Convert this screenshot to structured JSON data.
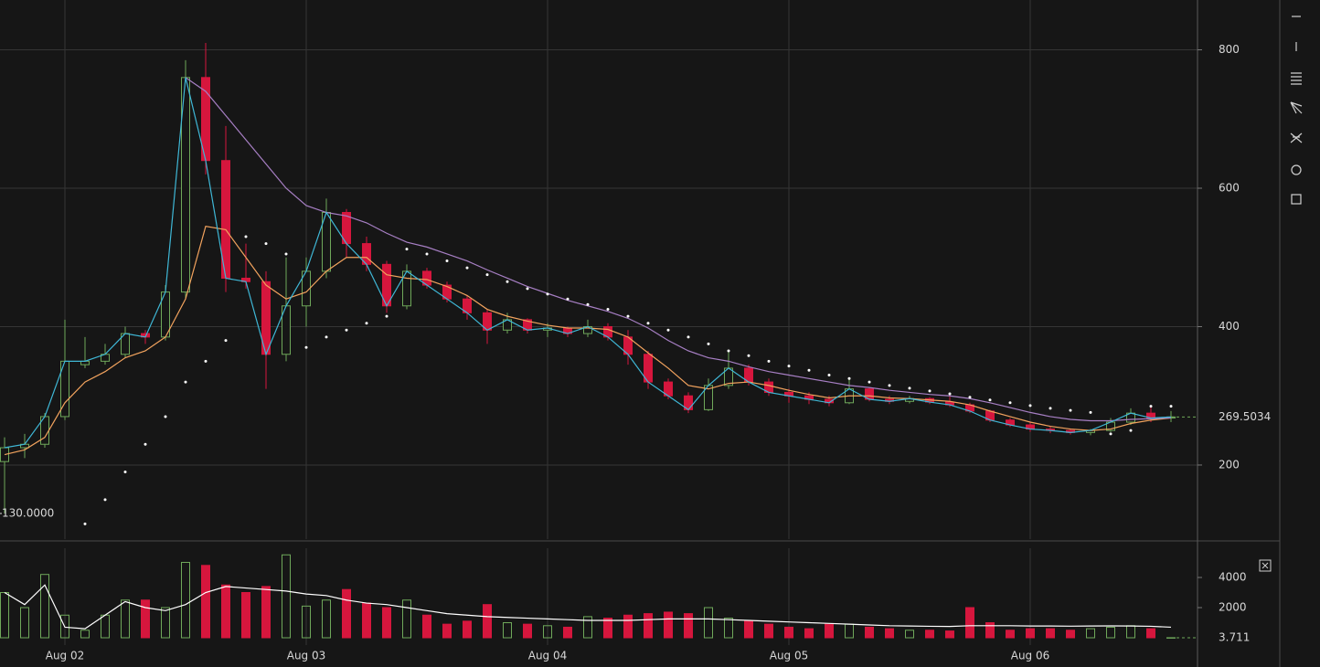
{
  "chart_data": {
    "type": "candlestick",
    "categories": [
      null,
      null,
      null,
      "Aug 02",
      null,
      null,
      null,
      null,
      null,
      null,
      null,
      null,
      null,
      null,
      null,
      "Aug 03",
      null,
      null,
      null,
      null,
      null,
      null,
      null,
      null,
      null,
      null,
      null,
      "Aug 04",
      null,
      null,
      null,
      null,
      null,
      null,
      null,
      null,
      null,
      null,
      null,
      "Aug 05",
      null,
      null,
      null,
      null,
      null,
      null,
      null,
      null,
      null,
      null,
      null,
      "Aug 06",
      null,
      null,
      null,
      null,
      null,
      null,
      null
    ],
    "open": [
      205,
      225,
      230,
      270,
      345,
      350,
      360,
      390,
      385,
      450,
      760,
      640,
      470,
      465,
      360,
      430,
      480,
      565,
      520,
      490,
      430,
      480,
      460,
      440,
      420,
      395,
      410,
      395,
      398,
      390,
      400,
      385,
      360,
      320,
      300,
      280,
      315,
      340,
      320,
      305,
      300,
      295,
      290,
      310,
      295,
      292,
      296,
      291,
      287,
      278,
      265,
      258,
      252,
      250,
      247,
      250,
      262,
      275,
      268
    ],
    "high": [
      240,
      245,
      275,
      410,
      385,
      375,
      400,
      395,
      460,
      785,
      810,
      690,
      520,
      480,
      500,
      500,
      585,
      570,
      530,
      495,
      490,
      485,
      465,
      445,
      425,
      420,
      412,
      405,
      400,
      410,
      405,
      395,
      365,
      325,
      305,
      325,
      365,
      345,
      325,
      310,
      305,
      300,
      325,
      312,
      300,
      300,
      298,
      300,
      290,
      280,
      268,
      262,
      256,
      253,
      252,
      268,
      282,
      285,
      278
    ],
    "low": [
      130,
      210,
      225,
      265,
      340,
      345,
      355,
      375,
      380,
      440,
      620,
      450,
      455,
      310,
      350,
      400,
      470,
      500,
      480,
      420,
      425,
      455,
      435,
      410,
      375,
      390,
      390,
      385,
      385,
      385,
      380,
      345,
      310,
      295,
      275,
      278,
      310,
      315,
      300,
      290,
      288,
      285,
      288,
      292,
      288,
      289,
      288,
      284,
      275,
      262,
      255,
      248,
      246,
      244,
      243,
      248,
      258,
      262,
      262
    ],
    "close": [
      225,
      230,
      270,
      350,
      350,
      360,
      390,
      385,
      450,
      760,
      640,
      470,
      465,
      360,
      430,
      480,
      565,
      520,
      490,
      430,
      480,
      460,
      440,
      420,
      395,
      410,
      395,
      398,
      390,
      400,
      385,
      360,
      320,
      300,
      280,
      315,
      340,
      320,
      305,
      300,
      295,
      290,
      310,
      295,
      292,
      296,
      291,
      287,
      278,
      265,
      258,
      252,
      250,
      247,
      250,
      262,
      275,
      268,
      269.5034
    ],
    "volume": [
      3000,
      2000,
      4200,
      1500,
      500,
      1500,
      2500,
      2500,
      2000,
      5000,
      4800,
      3500,
      3000,
      3400,
      5500,
      2100,
      2500,
      3200,
      2300,
      2000,
      2500,
      1500,
      900,
      1100,
      2200,
      1000,
      900,
      800,
      700,
      1400,
      1300,
      1500,
      1600,
      1700,
      1600,
      2000,
      1300,
      1100,
      900,
      700,
      600,
      900,
      900,
      700,
      600,
      500,
      500,
      450,
      2000,
      1000,
      500,
      600,
      600,
      500,
      600,
      700,
      800,
      600,
      3.711
    ],
    "up_color": "#6fa85a",
    "down_color": "#d6163d",
    "close_line_color": "#3fb7d6",
    "lines": [
      {
        "color": "#f2a35e",
        "values": [
          215,
          222,
          240,
          290,
          320,
          335,
          355,
          365,
          385,
          440,
          545,
          540,
          500,
          460,
          440,
          450,
          480,
          500,
          500,
          475,
          470,
          468,
          458,
          445,
          425,
          415,
          408,
          402,
          398,
          398,
          396,
          385,
          362,
          340,
          315,
          310,
          318,
          320,
          315,
          308,
          302,
          297,
          300,
          300,
          297,
          296,
          294,
          292,
          287,
          278,
          270,
          262,
          256,
          252,
          250,
          252,
          260,
          265,
          268
        ]
      },
      {
        "color": "#a77fc4",
        "values": [
          null,
          null,
          null,
          null,
          null,
          null,
          null,
          null,
          null,
          760,
          740,
          705,
          670,
          635,
          600,
          575,
          565,
          560,
          550,
          535,
          522,
          515,
          505,
          495,
          482,
          470,
          458,
          448,
          438,
          430,
          422,
          412,
          398,
          380,
          365,
          355,
          350,
          342,
          335,
          330,
          325,
          320,
          315,
          312,
          308,
          305,
          302,
          300,
          296,
          290,
          283,
          276,
          270,
          266,
          264,
          264,
          266,
          267,
          268
        ]
      }
    ],
    "sar": {
      "color": "#ffffff",
      "values": [
        null,
        null,
        null,
        null,
        115,
        150,
        190,
        230,
        270,
        320,
        350,
        380,
        530,
        520,
        505,
        370,
        385,
        395,
        405,
        415,
        512,
        505,
        495,
        485,
        475,
        465,
        455,
        447,
        440,
        432,
        425,
        415,
        405,
        395,
        385,
        375,
        365,
        358,
        350,
        343,
        337,
        330,
        325,
        320,
        315,
        311,
        307,
        303,
        298,
        294,
        290,
        286,
        282,
        279,
        276,
        245,
        250,
        285,
        285
      ]
    },
    "volume_ma": {
      "color": "#ffffff",
      "values": [
        3000,
        2200,
        3500,
        700,
        600,
        1500,
        2400,
        2000,
        1800,
        2200,
        3000,
        3400,
        3300,
        3200,
        3100,
        2900,
        2800,
        2500,
        2300,
        2200,
        2000,
        1800,
        1600,
        1500,
        1400,
        1350,
        1300,
        1250,
        1200,
        1150,
        1150,
        1150,
        1200,
        1250,
        1250,
        1250,
        1200,
        1150,
        1100,
        1050,
        1000,
        950,
        900,
        850,
        800,
        780,
        760,
        750,
        800,
        800,
        800,
        780,
        780,
        770,
        780,
        790,
        780,
        760,
        700
      ]
    },
    "annotations": [
      {
        "value": 130,
        "label": "130.0000"
      }
    ],
    "ylim": [
      93,
      872
    ],
    "yticks": [
      200,
      400,
      600,
      800
    ],
    "volume_ylim": [
      0,
      6000
    ],
    "volume_yticks": [
      2000,
      4000
    ],
    "grid": true
  }
}
